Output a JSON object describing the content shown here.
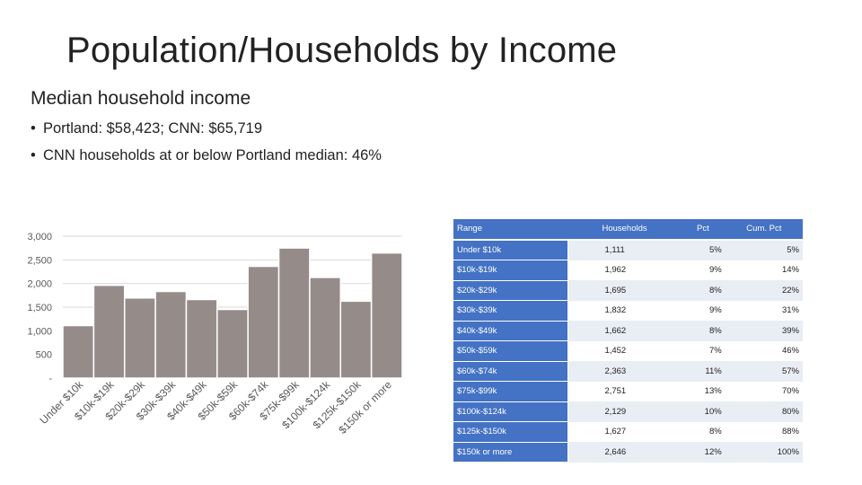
{
  "slide": {
    "title": "Population/Households by Income",
    "subtitle": "Median household income",
    "bullets": [
      "Portland: $58,423; CNN: $65,719",
      "CNN households at or below Portland median: 46%"
    ]
  },
  "chart_data": {
    "type": "bar",
    "categories": [
      "Under $10k",
      "$10k-$19k",
      "$20k-$29k",
      "$30k-$39k",
      "$40k-$49k",
      "$50k-$59k",
      "$60k-$74k",
      "$75k-$99k",
      "$100k-$124k",
      "$125k-$150k",
      "$150k or more"
    ],
    "values": [
      1111,
      1962,
      1695,
      1832,
      1662,
      1452,
      2363,
      2751,
      2129,
      1627,
      2646
    ],
    "ylim": [
      0,
      3000
    ],
    "yticks": [
      0,
      500,
      1000,
      1500,
      2000,
      2500,
      3000
    ],
    "ytick_labels": [
      "-",
      "500",
      "1,000",
      "1,500",
      "2,000",
      "2,500",
      "3,000"
    ],
    "bar_color": "#958c8a",
    "grid": true,
    "title": "",
    "xlabel": "",
    "ylabel": ""
  },
  "table": {
    "headers": [
      "Range",
      "Households",
      "Pct",
      "Cum. Pct"
    ],
    "rows": [
      [
        "Under $10k",
        "1,111",
        "5%",
        "5%"
      ],
      [
        "$10k-$19k",
        "1,962",
        "9%",
        "14%"
      ],
      [
        "$20k-$29k",
        "1,695",
        "8%",
        "22%"
      ],
      [
        "$30k-$39k",
        "1,832",
        "9%",
        "31%"
      ],
      [
        "$40k-$49k",
        "1,662",
        "8%",
        "39%"
      ],
      [
        "$50k-$59k",
        "1,452",
        "7%",
        "46%"
      ],
      [
        "$60k-$74k",
        "2,363",
        "11%",
        "57%"
      ],
      [
        "$75k-$99k",
        "2,751",
        "13%",
        "70%"
      ],
      [
        "$100k-$124k",
        "2,129",
        "10%",
        "80%"
      ],
      [
        "$125k-$150k",
        "1,627",
        "8%",
        "88%"
      ],
      [
        "$150k or more",
        "2,646",
        "12%",
        "100%"
      ]
    ],
    "header_color": "#4472c4",
    "band_color": "#e9edf4"
  }
}
